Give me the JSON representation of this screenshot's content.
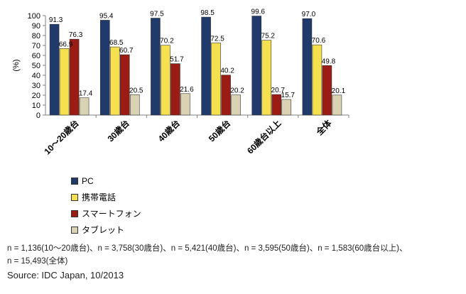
{
  "chart_data": {
    "type": "bar",
    "ylabel": "(%)",
    "ylim": [
      0,
      100
    ],
    "yticks": [
      0,
      10,
      20,
      30,
      40,
      50,
      60,
      70,
      80,
      90,
      100
    ],
    "categories": [
      "10～20歳台",
      "30歳台",
      "40歳台",
      "50歳台",
      "60歳台以上",
      "全体"
    ],
    "series": [
      {
        "name": "PC",
        "color": "#1f3a6b",
        "values": [
          91.3,
          95.4,
          97.5,
          98.5,
          99.6,
          97.0
        ],
        "labels": [
          "91.3",
          "95.4",
          "97.5",
          "98.5",
          "99.6",
          "97.0"
        ]
      },
      {
        "name": "携帯電話",
        "color": "#f5e050",
        "values": [
          66.9,
          68.5,
          70.2,
          72.5,
          75.2,
          70.6
        ],
        "labels": [
          "66.9",
          "68.5",
          "70.2",
          "72.5",
          "75.2",
          "70.6"
        ]
      },
      {
        "name": "スマートフォン",
        "color": "#9b1c14",
        "values": [
          76.3,
          60.7,
          51.7,
          40.2,
          20.7,
          49.8
        ],
        "labels": [
          "76.3",
          "60.7",
          "51.7",
          "40.2",
          "20.7",
          "49.8"
        ]
      },
      {
        "name": "タブレット",
        "color": "#d9d3b4",
        "values": [
          17.4,
          20.5,
          21.6,
          20.2,
          15.7,
          20.1
        ],
        "labels": [
          "17.4",
          "20.5",
          "21.6",
          "20.2",
          "15.7",
          "20.1"
        ]
      }
    ]
  },
  "notes": {
    "line1": "n = 1,136(10～20歳台)、n = 3,758(30歳台)、n = 5,421(40歳台)、n = 3,595(50歳台)、n = 1,583(60歳台以上)、",
    "line2": "n = 15,493(全体)"
  },
  "source": "Source: IDC Japan, 10/2013"
}
